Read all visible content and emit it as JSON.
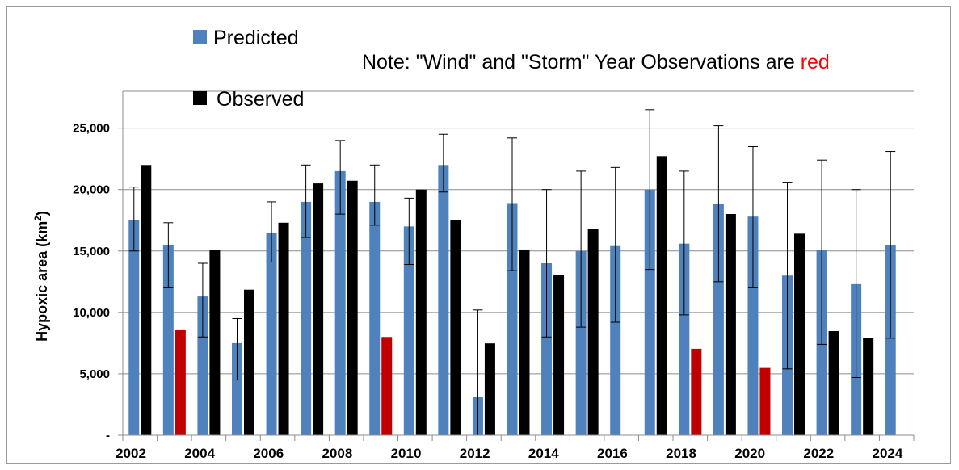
{
  "chart_data": {
    "type": "bar",
    "ylabel": "Hypoxic area (km",
    "ylabel_sup": "2",
    "ylabel_close": ")",
    "ylim": [
      0,
      28000
    ],
    "yticks": [
      {
        "value": 0,
        "label": "-"
      },
      {
        "value": 5000,
        "label": "5,000"
      },
      {
        "value": 10000,
        "label": "10,000"
      },
      {
        "value": 15000,
        "label": "15,000"
      },
      {
        "value": 20000,
        "label": "20,000"
      },
      {
        "value": 25000,
        "label": "25,000"
      }
    ],
    "xticks": [
      "2002",
      "2004",
      "2006",
      "2008",
      "2010",
      "2012",
      "2014",
      "2016",
      "2018",
      "2020",
      "2022",
      "2024"
    ],
    "grid": true,
    "legend_position": "top-left",
    "colors": {
      "predicted": "#4f81bd",
      "observed": "#000000",
      "storm": "#c00000"
    },
    "note": {
      "prefix": "Note: \"Wind\" and \"Storm\" Year Observations are ",
      "highlight": "red"
    },
    "series": [
      {
        "name": "Predicted"
      },
      {
        "name": "Observed"
      }
    ],
    "years": [
      {
        "year": 2002,
        "predicted": 17500,
        "err_low": 15000,
        "err_high": 20200,
        "observed": 22000,
        "storm": false
      },
      {
        "year": 2003,
        "predicted": 15500,
        "err_low": 12000,
        "err_high": 17300,
        "observed": 8550,
        "storm": true
      },
      {
        "year": 2004,
        "predicted": 11300,
        "err_low": 8000,
        "err_high": 14000,
        "observed": 15050,
        "storm": false
      },
      {
        "year": 2005,
        "predicted": 7500,
        "err_low": 4500,
        "err_high": 9500,
        "observed": 11850,
        "storm": false
      },
      {
        "year": 2006,
        "predicted": 16500,
        "err_low": 14100,
        "err_high": 19000,
        "observed": 17300,
        "storm": false
      },
      {
        "year": 2007,
        "predicted": 19000,
        "err_low": 16100,
        "err_high": 22000,
        "observed": 20500,
        "storm": false
      },
      {
        "year": 2008,
        "predicted": 21500,
        "err_low": 18000,
        "err_high": 24000,
        "observed": 20720,
        "storm": false
      },
      {
        "year": 2009,
        "predicted": 19000,
        "err_low": 17100,
        "err_high": 22000,
        "observed": 8000,
        "storm": true
      },
      {
        "year": 2010,
        "predicted": 17000,
        "err_low": 13900,
        "err_high": 19300,
        "observed": 20000,
        "storm": false
      },
      {
        "year": 2011,
        "predicted": 22000,
        "err_low": 19800,
        "err_high": 24500,
        "observed": 17520,
        "storm": false
      },
      {
        "year": 2012,
        "predicted": 3100,
        "err_low": 0,
        "err_high": 10200,
        "observed": 7480,
        "storm": false
      },
      {
        "year": 2013,
        "predicted": 18900,
        "err_low": 13400,
        "err_high": 24200,
        "observed": 15120,
        "storm": false
      },
      {
        "year": 2014,
        "predicted": 14000,
        "err_low": 8000,
        "err_high": 20000,
        "observed": 13080,
        "storm": false
      },
      {
        "year": 2015,
        "predicted": 15000,
        "err_low": 8800,
        "err_high": 21500,
        "observed": 16760,
        "storm": false
      },
      {
        "year": 2016,
        "predicted": 15400,
        "err_low": 9200,
        "err_high": 21800,
        "observed": null,
        "storm": false
      },
      {
        "year": 2017,
        "predicted": 20000,
        "err_low": 13500,
        "err_high": 26500,
        "observed": 22720,
        "storm": false
      },
      {
        "year": 2018,
        "predicted": 15600,
        "err_low": 9800,
        "err_high": 21500,
        "observed": 7040,
        "storm": true
      },
      {
        "year": 2019,
        "predicted": 18800,
        "err_low": 12500,
        "err_high": 25200,
        "observed": 18010,
        "storm": false
      },
      {
        "year": 2020,
        "predicted": 17800,
        "err_low": 12000,
        "err_high": 23500,
        "observed": 5480,
        "storm": true
      },
      {
        "year": 2021,
        "predicted": 13000,
        "err_low": 5400,
        "err_high": 20600,
        "observed": 16410,
        "storm": false
      },
      {
        "year": 2022,
        "predicted": 15100,
        "err_low": 7400,
        "err_high": 22400,
        "observed": 8480,
        "storm": false
      },
      {
        "year": 2023,
        "predicted": 12300,
        "err_low": 4700,
        "err_high": 20000,
        "observed": 7950,
        "storm": false
      },
      {
        "year": 2024,
        "predicted": 15500,
        "err_low": 7900,
        "err_high": 23100,
        "observed": null,
        "storm": false
      }
    ]
  }
}
